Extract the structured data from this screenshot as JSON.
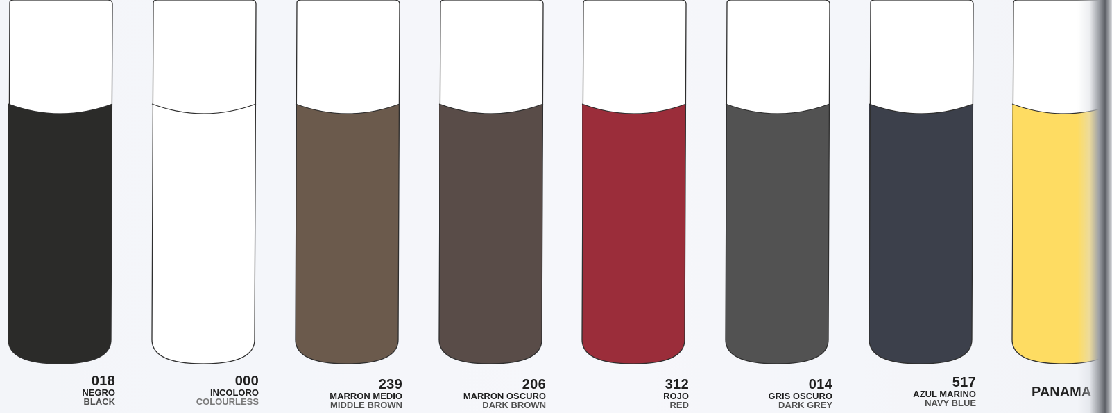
{
  "swatches": [
    {
      "code": "018",
      "name_es": "NEGRO",
      "name_en": "BLACK",
      "color": "#2b2b29"
    },
    {
      "code": "000",
      "name_es": "INCOLORO",
      "name_en": "COLOURLESS",
      "color": "#ffffff"
    },
    {
      "code": "239",
      "name_es": "MARRON MEDIO",
      "name_en": "MIDDLE BROWN",
      "color": "#6b5a4c"
    },
    {
      "code": "206",
      "name_es": "MARRON OSCURO",
      "name_en": "DARK BROWN",
      "color": "#594c48"
    },
    {
      "code": "312",
      "name_es": "ROJO",
      "name_en": "RED",
      "color": "#9b2d3a"
    },
    {
      "code": "014",
      "name_es": "GRIS OSCURO",
      "name_en": "DARK GREY",
      "color": "#525252"
    },
    {
      "code": "517",
      "name_es": "AZUL MARINO",
      "name_en": "NAVY BLUE",
      "color": "#3c404b"
    },
    {
      "code": "",
      "name_es": "PANAMA",
      "name_en": "",
      "color": "#fedc62"
    }
  ]
}
